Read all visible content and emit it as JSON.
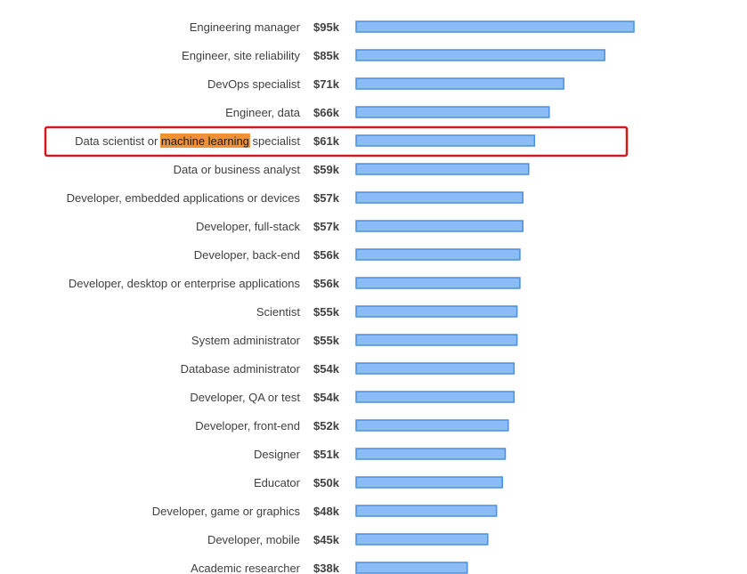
{
  "chart_data": {
    "type": "bar",
    "orientation": "horizontal",
    "categories": [
      "Engineering manager",
      "Engineer, site reliability",
      "DevOps specialist",
      "Engineer, data",
      "Data scientist or machine learning specialist",
      "Data or business analyst",
      "Developer, embedded applications or devices",
      "Developer, full-stack",
      "Developer, back-end",
      "Developer, desktop or enterprise applications",
      "Scientist",
      "System administrator",
      "Database administrator",
      "Developer, QA or test",
      "Developer, front-end",
      "Designer",
      "Educator",
      "Developer, game or graphics",
      "Developer, mobile",
      "Academic researcher"
    ],
    "values": [
      95,
      85,
      71,
      66,
      61,
      59,
      57,
      57,
      56,
      56,
      55,
      55,
      54,
      54,
      52,
      51,
      50,
      48,
      45,
      38
    ],
    "value_labels": [
      "$95k",
      "$85k",
      "$71k",
      "$66k",
      "$61k",
      "$59k",
      "$57k",
      "$57k",
      "$56k",
      "$56k",
      "$55k",
      "$55k",
      "$54k",
      "$54k",
      "$52k",
      "$51k",
      "$50k",
      "$48k",
      "$45k",
      "$38k"
    ],
    "highlight": {
      "index": 4,
      "label_parts": [
        "Data scientist or ",
        "machine learning",
        " specialist"
      ],
      "box_color": "#d11a1a",
      "text_highlight_color": "#f0913a"
    },
    "bar_fill": "#8bbcf5",
    "bar_stroke": "#4a8fe0",
    "grid": false,
    "legend": "none"
  }
}
